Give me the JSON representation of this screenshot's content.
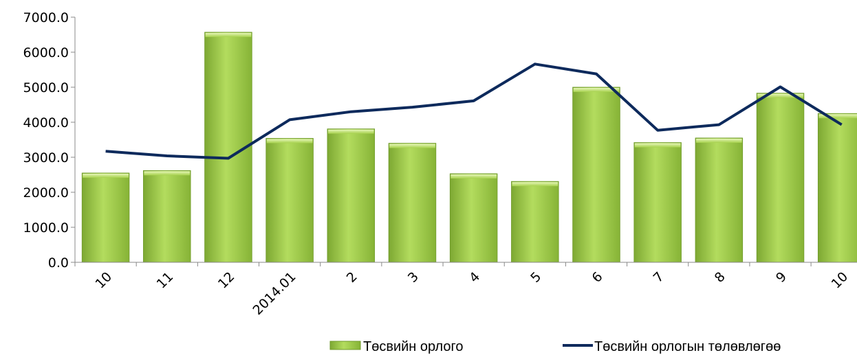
{
  "chart_data": {
    "type": "bar",
    "categories": [
      "10",
      "11",
      "12",
      "2014.01",
      "2",
      "3",
      "4",
      "5",
      "6",
      "7",
      "8",
      "9",
      "10"
    ],
    "series": [
      {
        "name": "Төсвийн орлого",
        "type": "bar",
        "color": "#92c83e",
        "values": [
          2550,
          2620,
          6570,
          3540,
          3810,
          3400,
          2530,
          2310,
          5000,
          3420,
          3550,
          4830,
          4250
        ]
      },
      {
        "name": "Төсвийн орлогын төлөвлөгөө",
        "type": "line",
        "color": "#0d2a5c",
        "values": [
          3170,
          3040,
          2970,
          4070,
          4300,
          4430,
          4610,
          5660,
          5380,
          3770,
          3930,
          5010,
          3930
        ]
      }
    ],
    "y_ticks": [
      "0.0",
      "1000.0",
      "2000.0",
      "3000.0",
      "4000.0",
      "5000.0",
      "6000.0",
      "7000.0"
    ],
    "ylim": [
      0,
      7000
    ],
    "grid": false,
    "legend_position": "bottom"
  }
}
